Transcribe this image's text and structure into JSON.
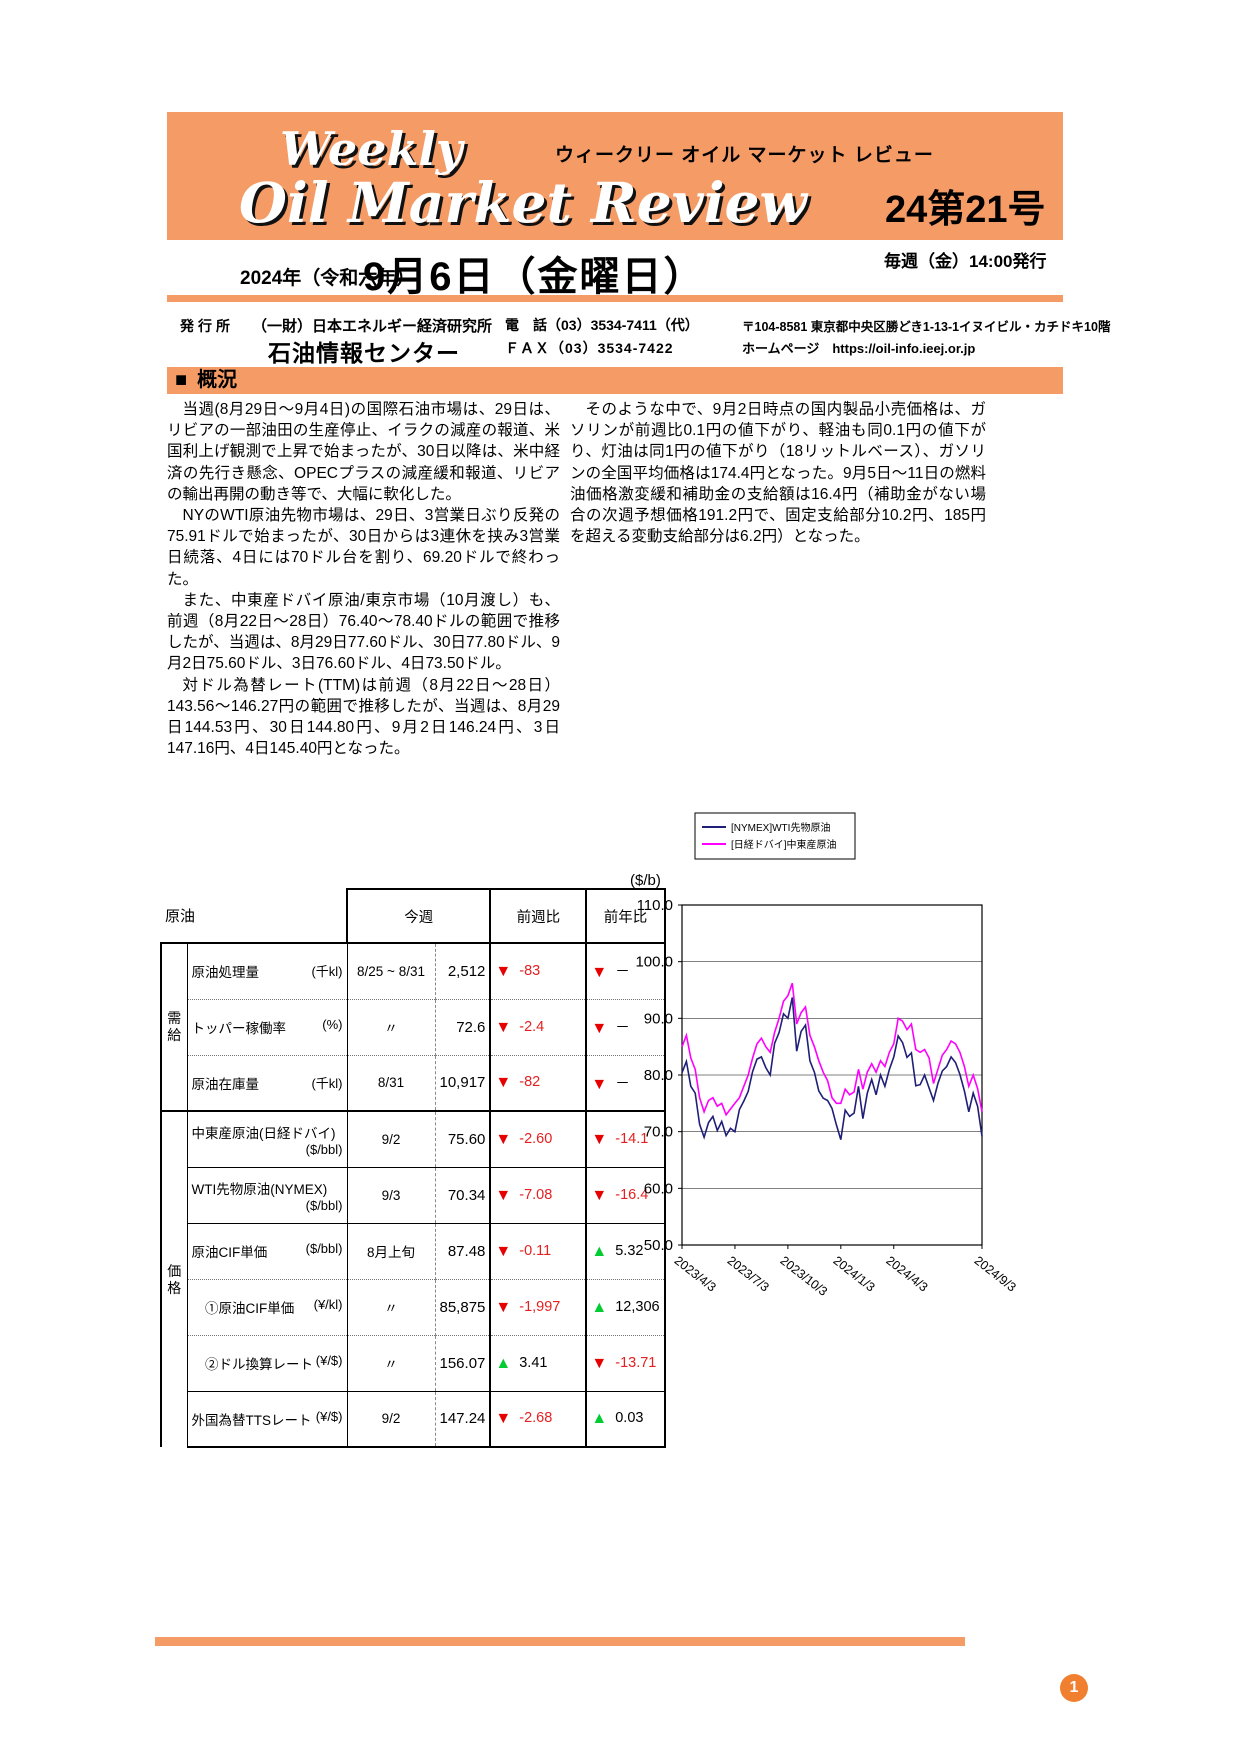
{
  "accent_color": "#F49B66",
  "header": {
    "title_script_small": "Weekly",
    "subtitle_katakana": "ウィークリー オイル マーケット レビュー",
    "title_script_large": "Oil Market Review",
    "issue": "24第21号",
    "year_label": "2024年（令和六年）",
    "date_label": "9月6日（金曜日）",
    "publish_label": "毎週（金）14:00発行"
  },
  "publisher": {
    "label": "発行所",
    "org1": "（一財）日本エネルギー経済研究所",
    "org2": "石油情報センター",
    "tel": "電　話（03）3534-7411（代）",
    "fax": "ＦＡＸ（03）3534-7422",
    "address": "〒104-8581 東京都中央区勝どき1-13-1イヌイビル・カチドキ10階",
    "homepage": "ホームページ　https://oil-info.ieej.or.jp"
  },
  "overview": {
    "heading_marker": "■",
    "heading": "概況",
    "left_paragraphs": [
      "当週(8月29日～9月4日)の国際石油市場は、29日は、リビアの一部油田の生産停止、イラクの減産の報道、米国利上げ観測で上昇で始まったが、30日以降は、米中経済の先行き懸念、OPECプラスの減産緩和報道、リビアの輸出再開の動き等で、大幅に軟化した。",
      "NYのWTI原油先物市場は、29日、3営業日ぶり反発の75.91ドルで始まったが、30日からは3連休を挟み3営業日続落、4日には70ドル台を割り、69.20ドルで終わった。",
      "また、中東産ドバイ原油/東京市場（10月渡し）も、前週（8月22日～28日）76.40～78.40ドルの範囲で推移したが、当週は、8月29日77.60ドル、30日77.80ドル、9月2日75.60ドル、3日76.60ドル、4日73.50ドル。",
      "対ドル為替レート(TTM)は前週（8月22日～28日）143.56～146.27円の範囲で推移したが、当週は、8月29日144.53円、30日144.80円、9月2日146.24円、3日147.16円、4日145.40円となった。"
    ],
    "right_paragraphs": [
      "そのような中で、9月2日時点の国内製品小売価格は、ガソリンが前週比0.1円の値下がり、軽油も同0.1円の値下がり、灯油は同1円の値下がり（18リットルベース）、ガソリンの全国平均価格は174.4円となった。9月5日～11日の燃料油価格激変緩和補助金の支給額は16.4円（補助金がない場合の次週予想価格191.2円で、固定支給部分10.2円、185円を超える変動支給部分は6.2円）となった。"
    ]
  },
  "table": {
    "corner_label": "原油",
    "headers": {
      "this_week": "今週",
      "wow": "前週比",
      "yoy": "前年比"
    },
    "groups": [
      {
        "label": "需給",
        "span": 3
      },
      {
        "label": "価格",
        "span": 6
      }
    ],
    "rows": [
      {
        "name": "原油処理量",
        "unit": "(千kl)",
        "date": "8/25 ~ 8/31",
        "value": "2,512",
        "wow": {
          "dir": "down",
          "val": "-83"
        },
        "yoy": {
          "dir": "down",
          "val": "－"
        },
        "sep": "solid2"
      },
      {
        "name": "トッパー稼働率",
        "unit": "(%)",
        "date": "〃",
        "value": "72.6",
        "wow": {
          "dir": "down",
          "val": "-2.4"
        },
        "yoy": {
          "dir": "down",
          "val": "－"
        },
        "sep": "dotted"
      },
      {
        "name": "原油在庫量",
        "unit": "(千kl)",
        "date": "8/31",
        "value": "10,917",
        "wow": {
          "dir": "down",
          "val": "-82"
        },
        "yoy": {
          "dir": "down",
          "val": "－"
        },
        "sep": "dotted"
      },
      {
        "name": "中東産原油(日経ドバイ)",
        "unit": "($/bbl)",
        "date": "9/2",
        "value": "75.60",
        "wow": {
          "dir": "down",
          "val": "-2.60"
        },
        "yoy": {
          "dir": "down",
          "val": "-14.1"
        },
        "sep": "solid2"
      },
      {
        "name": "WTI先物原油(NYMEX)",
        "unit": "($/bbl)",
        "date": "9/3",
        "value": "70.34",
        "wow": {
          "dir": "down",
          "val": "-7.08"
        },
        "yoy": {
          "dir": "down",
          "val": "-16.4"
        },
        "sep": "solid"
      },
      {
        "name": "原油CIF単価",
        "unit": "($/bbl)",
        "date": "8月上旬",
        "value": "87.48",
        "wow": {
          "dir": "down",
          "val": "-0.11"
        },
        "yoy": {
          "dir": "up",
          "val": "5.32"
        },
        "sep": "solid"
      },
      {
        "name": "　①原油CIF単価",
        "unit": "(¥/kl)",
        "date": "〃",
        "value": "85,875",
        "wow": {
          "dir": "down",
          "val": "-1,997"
        },
        "yoy": {
          "dir": "up",
          "val": "12,306"
        },
        "sep": "dotted"
      },
      {
        "name": "　②ドル換算レート",
        "unit": "(¥/$)",
        "date": "〃",
        "value": "156.07",
        "wow": {
          "dir": "up",
          "val": "3.41"
        },
        "yoy": {
          "dir": "down",
          "val": "-13.71"
        },
        "sep": "dotted"
      },
      {
        "name": "外国為替TTSレート",
        "unit": "(¥/$)",
        "date": "9/2",
        "value": "147.24",
        "wow": {
          "dir": "down",
          "val": "-2.68"
        },
        "yoy": {
          "dir": "up",
          "val": "0.03"
        },
        "sep": "solid"
      }
    ]
  },
  "chart_data": {
    "type": "line",
    "unit_label": "($/b)",
    "ylim": [
      50,
      110
    ],
    "ytick_step": 10,
    "xlim": [
      0,
      17
    ],
    "x_unit": "months since 2023/4/3",
    "x_start": 0,
    "x_step": 0.25,
    "grid": "horizontal",
    "legend_position": "top-left",
    "xticks": [
      {
        "pos": 0,
        "label": "2023/4/3"
      },
      {
        "pos": 3,
        "label": "2023/7/3"
      },
      {
        "pos": 6,
        "label": "2023/10/3"
      },
      {
        "pos": 9,
        "label": "2024/1/3"
      },
      {
        "pos": 12,
        "label": "2024/4/3"
      },
      {
        "pos": 17,
        "label": "2024/9/3"
      }
    ],
    "series": [
      {
        "name": "[NYMEX]WTI先物原油",
        "color": "#1f1f78",
        "values": [
          80.4,
          82.4,
          78.0,
          76.8,
          71.3,
          69.0,
          71.6,
          72.7,
          70.2,
          71.8,
          69.3,
          70.6,
          70.0,
          73.9,
          75.4,
          77.1,
          80.6,
          82.8,
          83.2,
          81.3,
          80.0,
          85.6,
          87.5,
          90.8,
          90.0,
          93.7,
          84.2,
          87.7,
          88.8,
          82.5,
          80.5,
          77.2,
          75.9,
          75.5,
          74.1,
          71.2,
          68.6,
          73.8,
          72.7,
          73.3,
          78.0,
          72.3,
          76.8,
          79.2,
          76.5,
          80.0,
          78.0,
          81.0,
          83.2,
          86.9,
          85.7,
          83.1,
          83.9,
          78.1,
          78.3,
          80.0,
          77.7,
          75.5,
          78.5,
          80.7,
          81.5,
          83.2,
          82.2,
          80.1,
          77.2,
          73.5,
          76.8,
          74.5,
          69.2
        ]
      },
      {
        "name": "[日経ドバイ]中東産原油",
        "color": "#ff00ff",
        "values": [
          85.0,
          87.0,
          83.0,
          81.0,
          76.0,
          73.5,
          75.5,
          76.0,
          74.5,
          75.0,
          73.0,
          74.0,
          75.0,
          76.0,
          78.0,
          80.0,
          83.0,
          85.5,
          86.5,
          85.0,
          84.0,
          87.5,
          90.0,
          93.0,
          94.0,
          96.2,
          89.0,
          91.0,
          92.0,
          87.0,
          85.0,
          82.5,
          80.5,
          79.0,
          76.0,
          75.0,
          75.0,
          77.5,
          76.5,
          77.0,
          81.0,
          77.5,
          80.5,
          82.0,
          80.5,
          82.5,
          81.5,
          84.0,
          85.5,
          90.0,
          89.5,
          88.0,
          89.0,
          84.5,
          84.0,
          84.5,
          83.0,
          78.5,
          81.0,
          83.5,
          84.5,
          86.0,
          85.5,
          84.0,
          81.5,
          78.0,
          80.0,
          77.6,
          73.5
        ]
      }
    ]
  },
  "footer": {
    "page_number": "1"
  }
}
